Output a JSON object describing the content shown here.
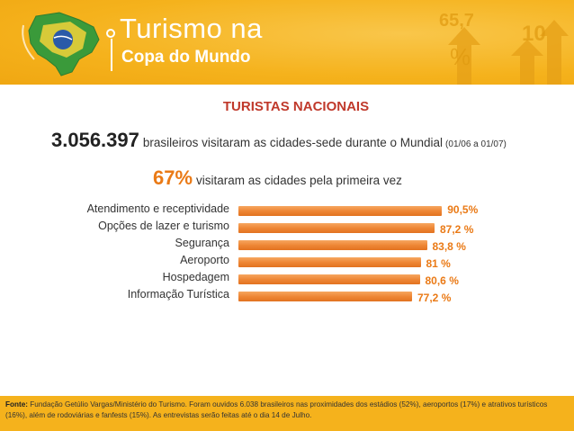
{
  "header": {
    "brand_line1": "Turismo na",
    "brand_line2": "Copa do Mundo",
    "deco_num1": "65,7",
    "deco_num2": "10",
    "deco_pct": "%",
    "accent_color": "#f5b21c"
  },
  "summary": {
    "total_value": "3.056.397",
    "total_text": "brasileiros visitaram as cidades-sede durante o Mundial",
    "period": "(01/06 a 01/07)",
    "first_time_pct": "67%",
    "first_time_text": "visitaram as cidades pela primeira vez"
  },
  "chart_data": {
    "type": "bar",
    "orientation": "horizontal",
    "title": "TURISTAS NACIONAIS",
    "categories": [
      "Atendimento e receptividade",
      "Opções de lazer e turismo",
      "Segurança",
      "Aeroporto",
      "Hospedagem",
      "Informação Turística"
    ],
    "values": [
      90.5,
      87.2,
      83.8,
      81,
      80.6,
      77.2
    ],
    "value_labels": [
      "90,5%",
      "87,2 %",
      "83,8 %",
      "81 %",
      "80,6 %",
      "77,2 %"
    ],
    "xlim": [
      0,
      100
    ],
    "bar_color": "#ee8736",
    "label_color": "#ea7a16"
  },
  "footer": {
    "source_label": "Fonte:",
    "source_text": "Fundação Getúlio Vargas/Ministério do Turismo. Foram ouvidos 6.038 brasileiros nas proximidades dos estádios (52%), aeroportos (17%) e atrativos turísticos (16%), além de rodoviárias e fanfests (15%). As entrevistas serão feitas até o dia 14 de Julho."
  }
}
